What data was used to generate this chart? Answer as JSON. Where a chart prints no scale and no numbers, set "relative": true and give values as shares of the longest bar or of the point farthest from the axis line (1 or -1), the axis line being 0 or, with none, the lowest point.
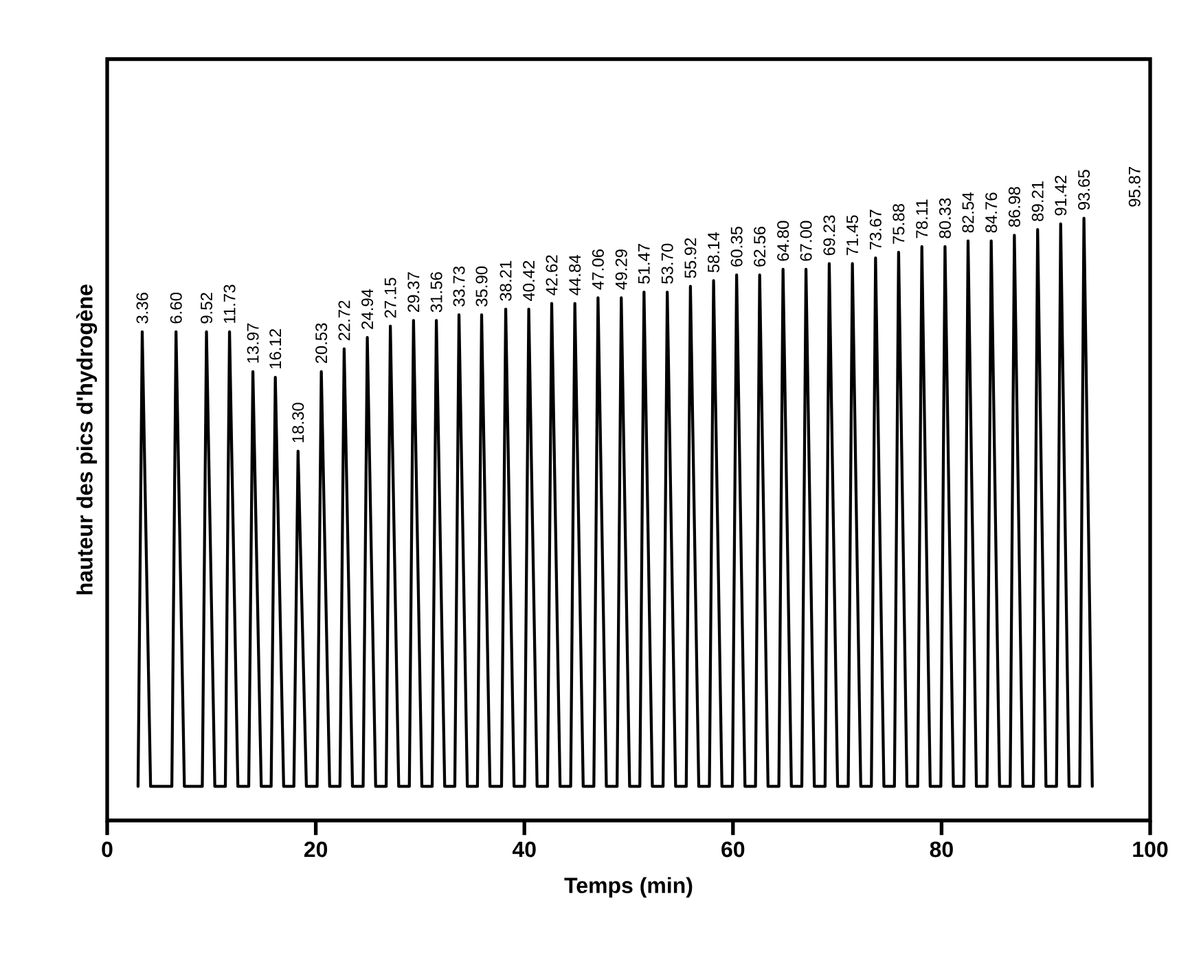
{
  "chart_data": {
    "type": "line",
    "relative": true,
    "xlabel": "Temps (min)",
    "ylabel": "hauteur des pics d'hydrogène",
    "xlim": [
      0,
      100
    ],
    "xticks": [
      0,
      20,
      40,
      60,
      80,
      100
    ],
    "line_style": "solid",
    "series": [
      {
        "color": "#000000",
        "x": [
          2.96,
          3.36,
          4.16,
          6.2,
          6.6,
          7.4,
          9.12,
          9.52,
          10.32,
          11.33,
          11.73,
          12.53,
          13.57,
          13.97,
          14.77,
          15.72,
          16.12,
          16.92,
          17.9,
          18.3,
          19.1,
          20.13,
          20.53,
          21.33,
          22.32,
          22.72,
          23.52,
          24.54,
          24.94,
          25.74,
          26.75,
          27.15,
          27.95,
          28.97,
          29.37,
          30.17,
          31.16,
          31.56,
          32.36,
          33.33,
          33.73,
          34.53,
          35.5,
          35.9,
          36.7,
          37.81,
          38.21,
          39.01,
          40.02,
          40.42,
          41.22,
          42.22,
          42.62,
          43.42,
          44.44,
          44.84,
          45.64,
          46.66,
          47.06,
          47.86,
          48.89,
          49.29,
          50.09,
          51.07,
          51.47,
          52.27,
          53.3,
          53.7,
          54.5,
          55.52,
          55.92,
          56.72,
          57.74,
          58.14,
          58.94,
          59.95,
          60.35,
          61.15,
          62.16,
          62.56,
          63.36,
          64.4,
          64.8,
          65.6,
          66.6,
          67,
          67.8,
          68.83,
          69.23,
          70.03,
          71.05,
          71.45,
          72.25,
          73.27,
          73.67,
          74.47,
          75.48,
          75.88,
          76.68,
          77.71,
          78.11,
          78.91,
          79.93,
          80.33,
          81.13,
          82.14,
          82.54,
          83.34,
          84.36,
          84.76,
          85.56,
          86.58,
          86.98,
          87.78,
          88.81,
          89.21,
          90.01,
          91.02,
          91.42,
          92.22,
          93.25,
          93.65,
          94.45
        ],
        "values": [
          0,
          0.8,
          0,
          0,
          0.8,
          0,
          0,
          0.8,
          0,
          0,
          0.8,
          0,
          0,
          0.73,
          0,
          0,
          0.72,
          0,
          0,
          0.59,
          0,
          0,
          0.73,
          0,
          0,
          0.77,
          0,
          0,
          0.79,
          0,
          0,
          0.81,
          0,
          0,
          0.82,
          0,
          0,
          0.82,
          0,
          0,
          0.83,
          0,
          0,
          0.83,
          0,
          0,
          0.84,
          0,
          0,
          0.84,
          0,
          0,
          0.85,
          0,
          0,
          0.85,
          0,
          0,
          0.86,
          0,
          0,
          0.86,
          0,
          0,
          0.87,
          0,
          0,
          0.87,
          0,
          0,
          0.88,
          0,
          0,
          0.89,
          0,
          0,
          0.9,
          0,
          0,
          0.9,
          0,
          0,
          0.91,
          0,
          0,
          0.91,
          0,
          0,
          0.92,
          0,
          0,
          0.92,
          0,
          0,
          0.93,
          0,
          0,
          0.94,
          0,
          0,
          0.95,
          0,
          0,
          0.95,
          0,
          0,
          0.96,
          0,
          0,
          0.96,
          0,
          0,
          0.97,
          0,
          0,
          0.98,
          0,
          0,
          0.99,
          0,
          0,
          1,
          0
        ]
      }
    ],
    "annotations": [
      {
        "text": "3.36",
        "x": 3.36,
        "y": 0.8
      },
      {
        "text": "6.60",
        "x": 6.6,
        "y": 0.8
      },
      {
        "text": "9.52",
        "x": 9.52,
        "y": 0.8
      },
      {
        "text": "11.73",
        "x": 11.73,
        "y": 0.8
      },
      {
        "text": "13.97",
        "x": 13.97,
        "y": 0.73
      },
      {
        "text": "16.12",
        "x": 16.12,
        "y": 0.72
      },
      {
        "text": "18.30",
        "x": 18.3,
        "y": 0.59
      },
      {
        "text": "20.53",
        "x": 20.53,
        "y": 0.73
      },
      {
        "text": "22.72",
        "x": 22.72,
        "y": 0.77
      },
      {
        "text": "24.94",
        "x": 24.94,
        "y": 0.79
      },
      {
        "text": "27.15",
        "x": 27.15,
        "y": 0.81
      },
      {
        "text": "29.37",
        "x": 29.37,
        "y": 0.82
      },
      {
        "text": "31.56",
        "x": 31.56,
        "y": 0.82
      },
      {
        "text": "33.73",
        "x": 33.73,
        "y": 0.83
      },
      {
        "text": "35.90",
        "x": 35.9,
        "y": 0.83
      },
      {
        "text": "38.21",
        "x": 38.21,
        "y": 0.84
      },
      {
        "text": "40.42",
        "x": 40.42,
        "y": 0.84
      },
      {
        "text": "42.62",
        "x": 42.62,
        "y": 0.85
      },
      {
        "text": "44.84",
        "x": 44.84,
        "y": 0.85
      },
      {
        "text": "47.06",
        "x": 47.06,
        "y": 0.86
      },
      {
        "text": "49.29",
        "x": 49.29,
        "y": 0.86
      },
      {
        "text": "51.47",
        "x": 51.47,
        "y": 0.87
      },
      {
        "text": "53.70",
        "x": 53.7,
        "y": 0.87
      },
      {
        "text": "55.92",
        "x": 55.92,
        "y": 0.88
      },
      {
        "text": "58.14",
        "x": 58.14,
        "y": 0.89
      },
      {
        "text": "60.35",
        "x": 60.35,
        "y": 0.9
      },
      {
        "text": "62.56",
        "x": 62.56,
        "y": 0.9
      },
      {
        "text": "64.80",
        "x": 64.8,
        "y": 0.91
      },
      {
        "text": "67.00",
        "x": 67,
        "y": 0.91
      },
      {
        "text": "69.23",
        "x": 69.23,
        "y": 0.92
      },
      {
        "text": "71.45",
        "x": 71.45,
        "y": 0.92
      },
      {
        "text": "73.67",
        "x": 73.67,
        "y": 0.93
      },
      {
        "text": "75.88",
        "x": 75.88,
        "y": 0.94
      },
      {
        "text": "78.11",
        "x": 78.11,
        "y": 0.95
      },
      {
        "text": "80.33",
        "x": 80.33,
        "y": 0.95
      },
      {
        "text": "82.54",
        "x": 82.54,
        "y": 0.96
      },
      {
        "text": "84.76",
        "x": 84.76,
        "y": 0.96
      },
      {
        "text": "86.98",
        "x": 86.98,
        "y": 0.97
      },
      {
        "text": "89.21",
        "x": 89.21,
        "y": 0.98
      },
      {
        "text": "91.42",
        "x": 91.42,
        "y": 0.99
      },
      {
        "text": "93.65",
        "x": 93.65,
        "y": 1
      },
      "95.87"
    ]
  }
}
